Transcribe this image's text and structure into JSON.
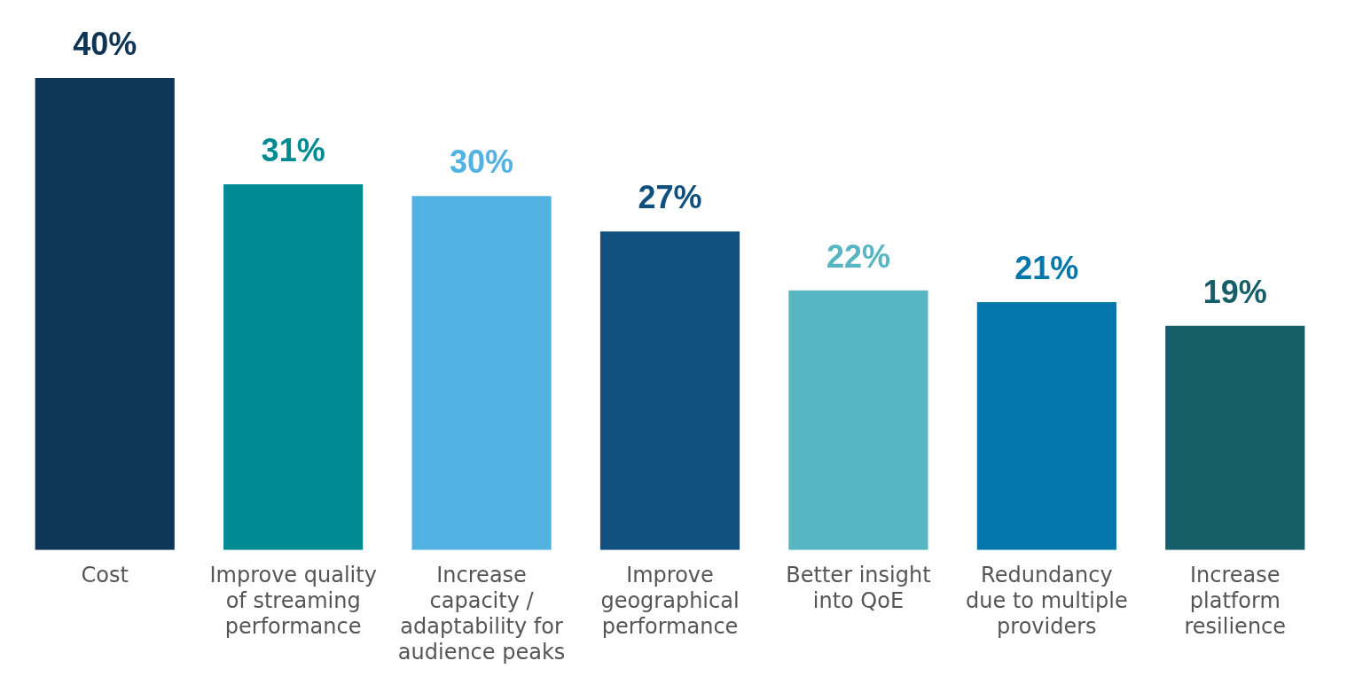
{
  "chart_data": {
    "type": "bar",
    "categories": [
      "Cost",
      "Improve quality of streaming performance",
      "Increase capacity / adaptability for audience peaks",
      "Improve geographical performance",
      "Better insight into QoE",
      "Redundancy due to multiple providers",
      "Increase platform resilience"
    ],
    "values": [
      40,
      31,
      30,
      27,
      22,
      21,
      19
    ],
    "colors": [
      "#0f3556",
      "#008b92",
      "#52b3e2",
      "#10507e",
      "#58b5c2",
      "#0677ab",
      "#165e68"
    ],
    "value_labels": [
      "40%",
      "31%",
      "30%",
      "27%",
      "22%",
      "21%",
      "19%"
    ],
    "tick_labels": "x",
    "grid": false,
    "legend": false
  }
}
